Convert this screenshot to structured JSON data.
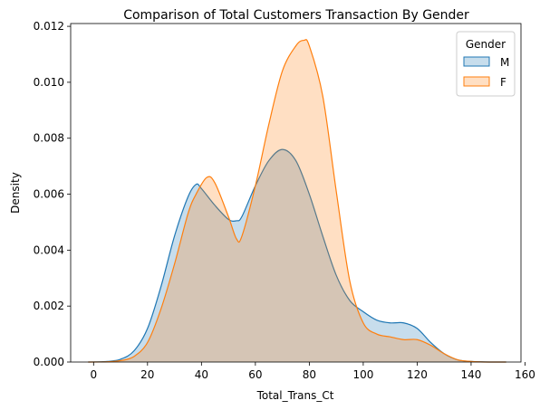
{
  "chart_data": {
    "type": "area",
    "title": "Comparison of Total Customers Transaction By Gender",
    "xlabel": "Total_Trans_Ct",
    "ylabel": "Density",
    "xlim": [
      -8.5,
      158.5
    ],
    "ylim": [
      0,
      0.0121
    ],
    "xticks": [
      "0",
      "20",
      "40",
      "60",
      "80",
      "100",
      "120",
      "140",
      "160"
    ],
    "xtick_values": [
      0,
      20,
      40,
      60,
      80,
      100,
      120,
      140,
      160
    ],
    "yticks": [
      "0.000",
      "0.002",
      "0.004",
      "0.006",
      "0.008",
      "0.010",
      "0.012"
    ],
    "ytick_values": [
      0,
      0.002,
      0.004,
      0.006,
      0.008,
      0.01,
      0.012
    ],
    "legend": {
      "title": "Gender",
      "placement": "top-right"
    },
    "series": [
      {
        "name": "M",
        "color": "#1f77b4",
        "fill": "#1f77b4",
        "x": [
          -2,
          5,
          10,
          15,
          20,
          25,
          30,
          35,
          38,
          40,
          45,
          50,
          53,
          55,
          60,
          65,
          70,
          75,
          80,
          85,
          90,
          95,
          100,
          105,
          110,
          115,
          120,
          125,
          130,
          135,
          140,
          145,
          150,
          153
        ],
        "y": [
          0,
          2e-05,
          0.0001,
          0.0004,
          0.0012,
          0.0027,
          0.0045,
          0.0059,
          0.00635,
          0.0062,
          0.0056,
          0.0051,
          0.00505,
          0.0052,
          0.0063,
          0.0072,
          0.0076,
          0.0072,
          0.006,
          0.0045,
          0.0031,
          0.0022,
          0.0018,
          0.0015,
          0.0014,
          0.0014,
          0.0012,
          0.0007,
          0.0003,
          8e-05,
          2e-05,
          5e-06,
          0,
          0
        ]
      },
      {
        "name": "F",
        "color": "#ff7f0e",
        "fill": "#ff7f0e",
        "x": [
          -2,
          5,
          10,
          15,
          20,
          25,
          30,
          35,
          38,
          42,
          45,
          50,
          53,
          55,
          60,
          65,
          70,
          75,
          78,
          80,
          85,
          90,
          95,
          100,
          105,
          110,
          115,
          120,
          125,
          130,
          135,
          140,
          145,
          153
        ],
        "y": [
          0,
          1e-05,
          5e-05,
          0.0002,
          0.0007,
          0.0019,
          0.0035,
          0.0053,
          0.006,
          0.0066,
          0.0064,
          0.0052,
          0.0044,
          0.0045,
          0.0063,
          0.0085,
          0.0104,
          0.0113,
          0.0115,
          0.0113,
          0.0095,
          0.0061,
          0.0029,
          0.0014,
          0.001,
          0.0009,
          0.0008,
          0.0008,
          0.0006,
          0.0003,
          8e-05,
          2e-05,
          0,
          0
        ]
      }
    ]
  }
}
